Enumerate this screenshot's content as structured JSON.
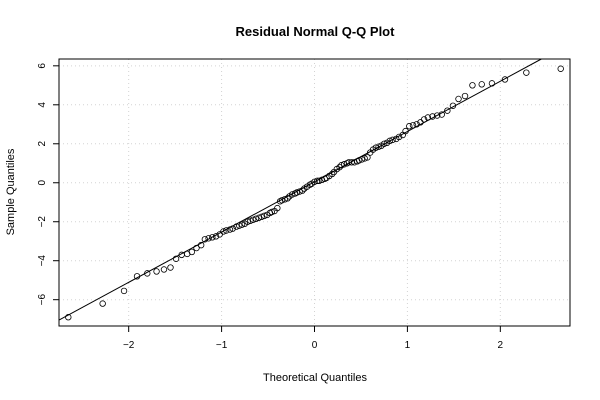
{
  "chart_data": {
    "type": "scatter",
    "title": "Residual Normal Q-Q Plot",
    "xlabel": "Theoretical Quantiles",
    "ylabel": "Sample Quantiles",
    "xlim": [
      -2.75,
      2.75
    ],
    "ylim": [
      -7.35,
      6.35
    ],
    "xticks": [
      -2,
      -1,
      0,
      1,
      2
    ],
    "xtick_labels": [
      "−2",
      "−1",
      "0",
      "1",
      "2"
    ],
    "yticks": [
      -6,
      -4,
      -2,
      0,
      2,
      4,
      6
    ],
    "ytick_labels": [
      "−6",
      "−4",
      "−2",
      "0",
      "2",
      "4",
      "6"
    ],
    "grid": true,
    "marker": "open-circle",
    "reference_line": {
      "slope": 2.58,
      "intercept": 0.05
    },
    "points": [
      [
        -2.65,
        -6.9
      ],
      [
        -2.28,
        -6.2
      ],
      [
        -2.05,
        -5.55
      ],
      [
        -1.91,
        -4.8
      ],
      [
        -1.8,
        -4.65
      ],
      [
        -1.7,
        -4.55
      ],
      [
        -1.62,
        -4.45
      ],
      [
        -1.55,
        -4.35
      ],
      [
        -1.49,
        -3.9
      ],
      [
        -1.43,
        -3.7
      ],
      [
        -1.37,
        -3.65
      ],
      [
        -1.32,
        -3.55
      ],
      [
        -1.27,
        -3.35
      ],
      [
        -1.22,
        -3.2
      ],
      [
        -1.18,
        -2.9
      ],
      [
        -1.14,
        -2.85
      ],
      [
        -1.1,
        -2.8
      ],
      [
        -1.06,
        -2.75
      ],
      [
        -1.02,
        -2.65
      ],
      [
        -0.98,
        -2.5
      ],
      [
        -0.95,
        -2.45
      ],
      [
        -0.91,
        -2.4
      ],
      [
        -0.88,
        -2.35
      ],
      [
        -0.84,
        -2.25
      ],
      [
        -0.81,
        -2.2
      ],
      [
        -0.78,
        -2.15
      ],
      [
        -0.75,
        -2.1
      ],
      [
        -0.72,
        -2.0
      ],
      [
        -0.69,
        -1.95
      ],
      [
        -0.66,
        -1.9
      ],
      [
        -0.63,
        -1.85
      ],
      [
        -0.6,
        -1.8
      ],
      [
        -0.57,
        -1.75
      ],
      [
        -0.54,
        -1.7
      ],
      [
        -0.51,
        -1.65
      ],
      [
        -0.48,
        -1.55
      ],
      [
        -0.46,
        -1.5
      ],
      [
        -0.43,
        -1.45
      ],
      [
        -0.4,
        -1.3
      ],
      [
        -0.37,
        -0.95
      ],
      [
        -0.35,
        -0.9
      ],
      [
        -0.32,
        -0.85
      ],
      [
        -0.29,
        -0.8
      ],
      [
        -0.27,
        -0.7
      ],
      [
        -0.24,
        -0.6
      ],
      [
        -0.21,
        -0.55
      ],
      [
        -0.19,
        -0.5
      ],
      [
        -0.16,
        -0.45
      ],
      [
        -0.13,
        -0.4
      ],
      [
        -0.11,
        -0.3
      ],
      [
        -0.08,
        -0.2
      ],
      [
        -0.05,
        -0.1
      ],
      [
        -0.03,
        -0.05
      ],
      [
        0.0,
        0.05
      ],
      [
        0.03,
        0.1
      ],
      [
        0.05,
        0.1
      ],
      [
        0.08,
        0.15
      ],
      [
        0.11,
        0.2
      ],
      [
        0.13,
        0.25
      ],
      [
        0.16,
        0.35
      ],
      [
        0.19,
        0.45
      ],
      [
        0.21,
        0.55
      ],
      [
        0.24,
        0.7
      ],
      [
        0.27,
        0.8
      ],
      [
        0.29,
        0.9
      ],
      [
        0.32,
        0.95
      ],
      [
        0.35,
        1.0
      ],
      [
        0.37,
        1.05
      ],
      [
        0.4,
        1.05
      ],
      [
        0.43,
        1.05
      ],
      [
        0.46,
        1.1
      ],
      [
        0.48,
        1.15
      ],
      [
        0.51,
        1.2
      ],
      [
        0.54,
        1.25
      ],
      [
        0.57,
        1.3
      ],
      [
        0.6,
        1.55
      ],
      [
        0.63,
        1.7
      ],
      [
        0.66,
        1.8
      ],
      [
        0.69,
        1.85
      ],
      [
        0.72,
        1.9
      ],
      [
        0.75,
        2.0
      ],
      [
        0.78,
        2.05
      ],
      [
        0.81,
        2.15
      ],
      [
        0.84,
        2.2
      ],
      [
        0.88,
        2.25
      ],
      [
        0.91,
        2.35
      ],
      [
        0.95,
        2.45
      ],
      [
        0.98,
        2.65
      ],
      [
        1.02,
        2.9
      ],
      [
        1.06,
        2.95
      ],
      [
        1.1,
        3.0
      ],
      [
        1.14,
        3.1
      ],
      [
        1.18,
        3.25
      ],
      [
        1.22,
        3.35
      ],
      [
        1.27,
        3.4
      ],
      [
        1.32,
        3.45
      ],
      [
        1.37,
        3.5
      ],
      [
        1.43,
        3.7
      ],
      [
        1.49,
        3.95
      ],
      [
        1.55,
        4.3
      ],
      [
        1.62,
        4.45
      ],
      [
        1.7,
        5.0
      ],
      [
        1.8,
        5.05
      ],
      [
        1.91,
        5.1
      ],
      [
        2.05,
        5.3
      ],
      [
        2.28,
        5.65
      ],
      [
        2.65,
        5.85
      ]
    ]
  }
}
